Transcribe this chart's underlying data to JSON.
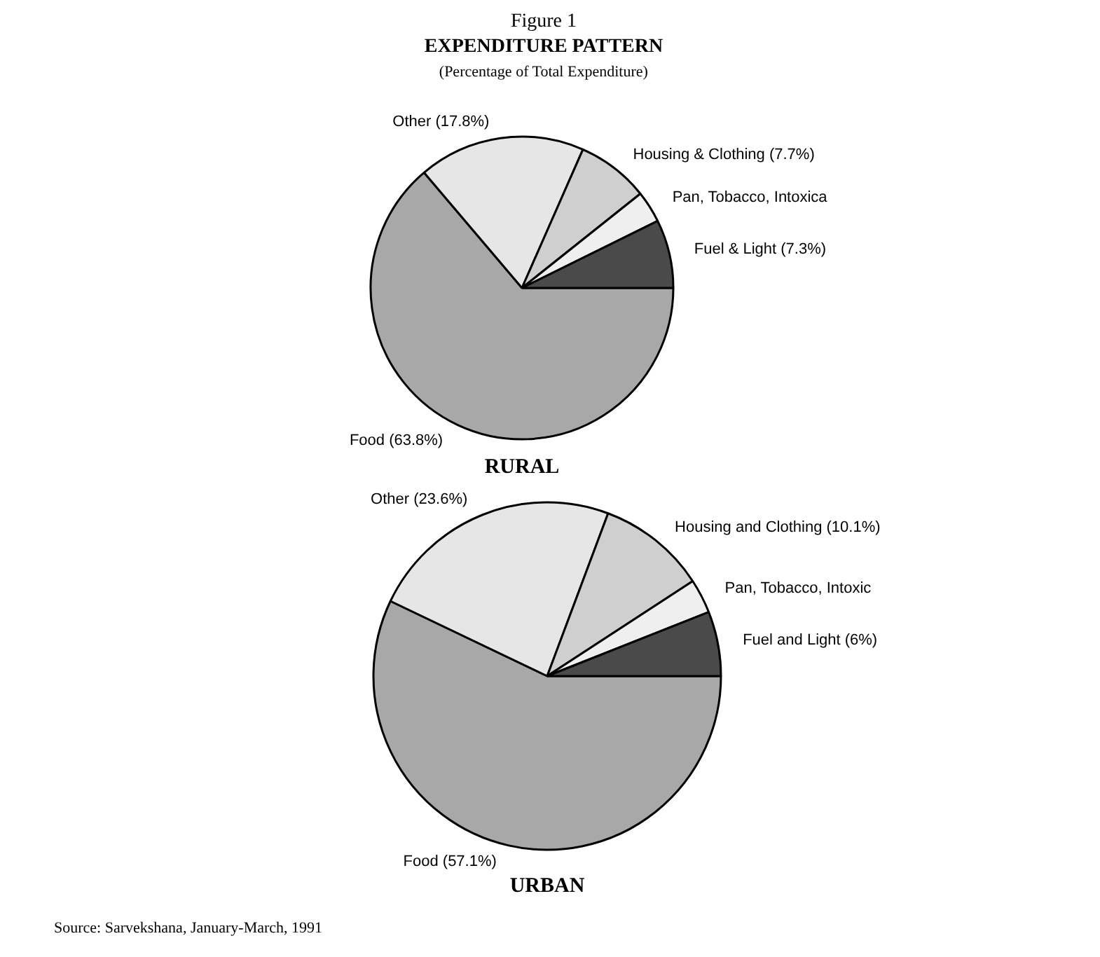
{
  "chart_data": [
    {
      "type": "pie",
      "title": "EXPENDITURE PATTERN",
      "subtitle": "(Percentage of Total Expenditure)",
      "annotations": [
        "Figure 1"
      ],
      "xlabel": "RURAL",
      "categories": [
        "Food (63.8%)",
        "Other (17.8%)",
        "Housing & Clothing (7.7%)",
        "Pan, Tobacco, Intoxica",
        "Fuel & Light (7.3%)"
      ],
      "values": [
        63.8,
        17.8,
        7.7,
        3.4,
        7.3
      ],
      "colors": [
        "#a8a8a8",
        "#e6e6e6",
        "#cfcfcf",
        "#efefef",
        "#4a4a4a"
      ]
    },
    {
      "type": "pie",
      "xlabel": "URBAN",
      "annotations": [
        "Source: Sarvekshana, January-March, 1991"
      ],
      "categories": [
        "Food (57.1%)",
        "Other (23.6%)",
        "Housing and Clothing (10.1%)",
        "Pan, Tobacco, Intoxic",
        "Fuel and Light (6%)"
      ],
      "values": [
        57.1,
        23.6,
        10.1,
        3.2,
        6
      ],
      "colors": [
        "#a8a8a8",
        "#e6e6e6",
        "#cfcfcf",
        "#efefef",
        "#4a4a4a"
      ]
    }
  ]
}
